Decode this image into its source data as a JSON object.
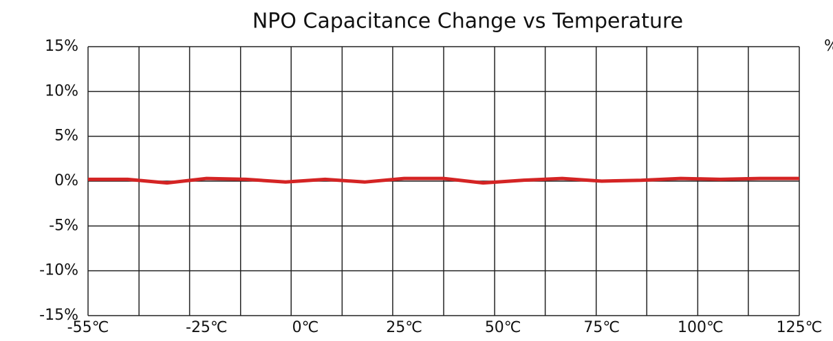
{
  "chart_data": {
    "type": "line",
    "title": "NPO Capacitance Change vs Temperature",
    "y_unit": "%",
    "x": [
      -55,
      -45,
      -35,
      -25,
      -15,
      -5,
      5,
      15,
      25,
      35,
      45,
      55,
      65,
      75,
      85,
      95,
      105,
      115,
      125
    ],
    "series": [
      {
        "name": "NPO",
        "color": "#d42424",
        "values": [
          0.2,
          0.2,
          -0.2,
          0.3,
          0.2,
          -0.1,
          0.2,
          -0.1,
          0.3,
          0.3,
          -0.2,
          0.1,
          0.3,
          0.0,
          0.1,
          0.3,
          0.2,
          0.3,
          0.3
        ]
      }
    ],
    "xlim": [
      -55,
      125
    ],
    "xticks": [
      {
        "value": -55,
        "label": "-55℃"
      },
      {
        "value": -25,
        "label": "-25℃"
      },
      {
        "value": 0,
        "label": "0℃"
      },
      {
        "value": 25,
        "label": "25℃"
      },
      {
        "value": 50,
        "label": "50℃"
      },
      {
        "value": 75,
        "label": "75℃"
      },
      {
        "value": 100,
        "label": "100℃"
      },
      {
        "value": 125,
        "label": "125℃"
      }
    ],
    "xgrid": [
      -55,
      -42.1,
      -29.3,
      -16.4,
      -3.6,
      9.3,
      22.1,
      35,
      47.9,
      60.7,
      73.6,
      86.4,
      99.3,
      112.1,
      125
    ],
    "ylim": [
      -15,
      15
    ],
    "yticks": [
      {
        "value": 15,
        "label": "15%"
      },
      {
        "value": 10,
        "label": "10%"
      },
      {
        "value": 5,
        "label": "5%"
      },
      {
        "value": 0,
        "label": "0%"
      },
      {
        "value": -5,
        "label": "-5%"
      },
      {
        "value": -10,
        "label": "-10%"
      },
      {
        "value": -15,
        "label": "-15%"
      }
    ],
    "grid": true
  }
}
